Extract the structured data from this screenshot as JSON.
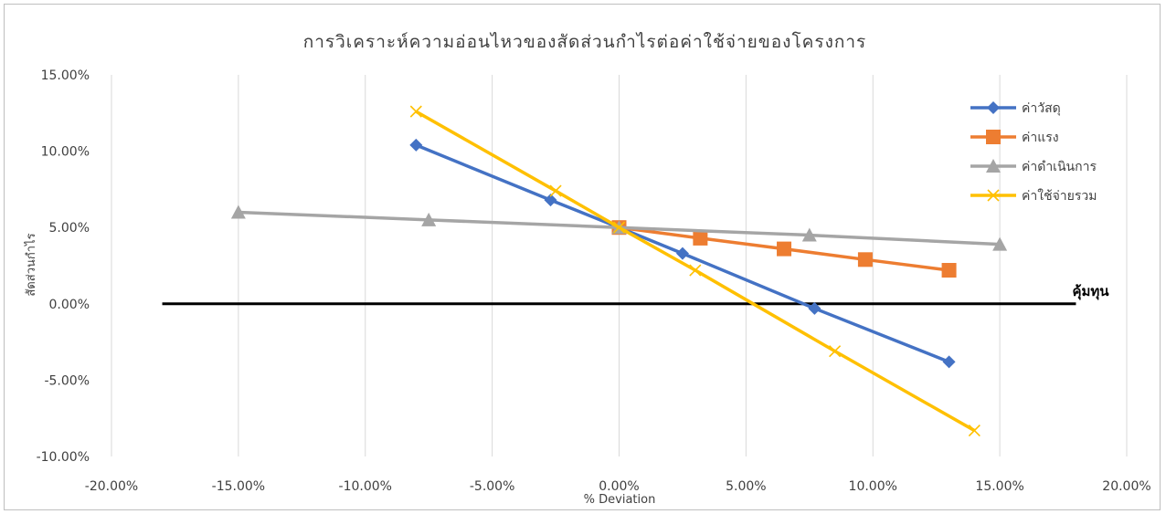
{
  "chart_data": {
    "type": "scatter",
    "title": "การวิเคราะห์ความอ่อนไหวของสัดส่วนกำไรต่อค่าใช้จ่ายของโครงการ",
    "xlabel": "% Deviation",
    "ylabel": "สัดส่วนกำไร",
    "xlim": [
      -0.2,
      0.2
    ],
    "ylim": [
      -0.1,
      0.15
    ],
    "x_ticks": [
      "-20.00%",
      "-15.00%",
      "-10.00%",
      "-5.00%",
      "0.00%",
      "5.00%",
      "10.00%",
      "15.00%",
      "20.00%"
    ],
    "y_ticks": [
      "15.00%",
      "10.00%",
      "5.00%",
      "0.00%",
      "-5.00%",
      "-10.00%"
    ],
    "grid": "vertical",
    "legend": "top-right",
    "series": [
      {
        "name": "ค่าวัสดุ",
        "color": "#4472C4",
        "marker": "diamond",
        "x": [
          -0.08,
          -0.027,
          0,
          0.025,
          0.077,
          0.13
        ],
        "y": [
          0.104,
          0.068,
          0.05,
          0.033,
          -0.003,
          -0.038
        ]
      },
      {
        "name": "ค่าแรง",
        "color": "#ED7D31",
        "marker": "square",
        "x": [
          0,
          0.032,
          0.065,
          0.097,
          0.13
        ],
        "y": [
          0.05,
          0.043,
          0.036,
          0.029,
          0.022
        ]
      },
      {
        "name": "ค่าดำเนินการ",
        "color": "#A5A5A5",
        "marker": "triangle",
        "x": [
          -0.15,
          -0.075,
          0,
          0.075,
          0.15
        ],
        "y": [
          0.06,
          0.055,
          0.05,
          0.045,
          0.039
        ]
      },
      {
        "name": "ค่าใช้จ่ายรวม",
        "color": "#FFC000",
        "marker": "x",
        "x": [
          -0.08,
          -0.025,
          0,
          0.03,
          0.085,
          0.14
        ],
        "y": [
          0.126,
          0.074,
          0.05,
          0.022,
          -0.031,
          -0.083
        ]
      }
    ],
    "breakeven": {
      "label": "คุ้มทุน",
      "y": 0,
      "x_range": [
        -0.18,
        0.18
      ],
      "color": "#000000"
    }
  }
}
